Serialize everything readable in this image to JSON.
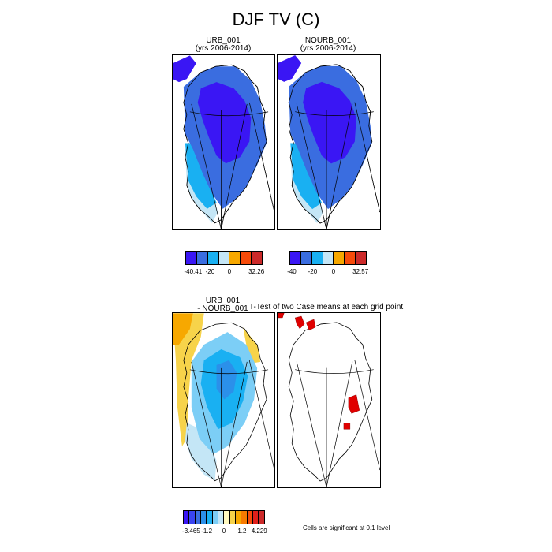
{
  "title": "DJF TV (C)",
  "panels": {
    "urb": {
      "title_line1": "URB_001",
      "title_line2": "(yrs 2006-2014)"
    },
    "nourb": {
      "title_line1": "NOURB_001",
      "title_line2": "(yrs 2006-2014)"
    },
    "diff": {
      "title_line1": "URB_001",
      "title_line2": "- NOURB_001"
    },
    "ttest": {
      "title": "T-Test of two Case means at each grid point",
      "note": "Cells are significant at 0.1 level"
    }
  },
  "colorbars": {
    "urb": {
      "colors": [
        "#3a16f4",
        "#3a6de0",
        "#19b0f2",
        "#c4e6f6",
        "#f7a800",
        "#f74b0a",
        "#cc2a2a"
      ],
      "labels": [
        "-40.41",
        "-20",
        "0",
        "32.26"
      ]
    },
    "nourb": {
      "colors": [
        "#3a16f4",
        "#3a6de0",
        "#19b0f2",
        "#c4e6f6",
        "#f7a800",
        "#f74b0a",
        "#cc2a2a"
      ],
      "labels": [
        "-40",
        "-20",
        "0",
        "32.57"
      ]
    },
    "diff": {
      "colors": [
        "#3a16f4",
        "#3a44f0",
        "#3a6de0",
        "#2b90ea",
        "#19b0f2",
        "#7ccef6",
        "#c4e6f6",
        "#fff9c0",
        "#f7d34a",
        "#f7a800",
        "#f77a00",
        "#f74b0a",
        "#e0201a",
        "#cc2a2a"
      ],
      "labels": [
        "-3.465",
        "-1.2",
        "0",
        "1.2",
        "4.229"
      ]
    }
  }
}
